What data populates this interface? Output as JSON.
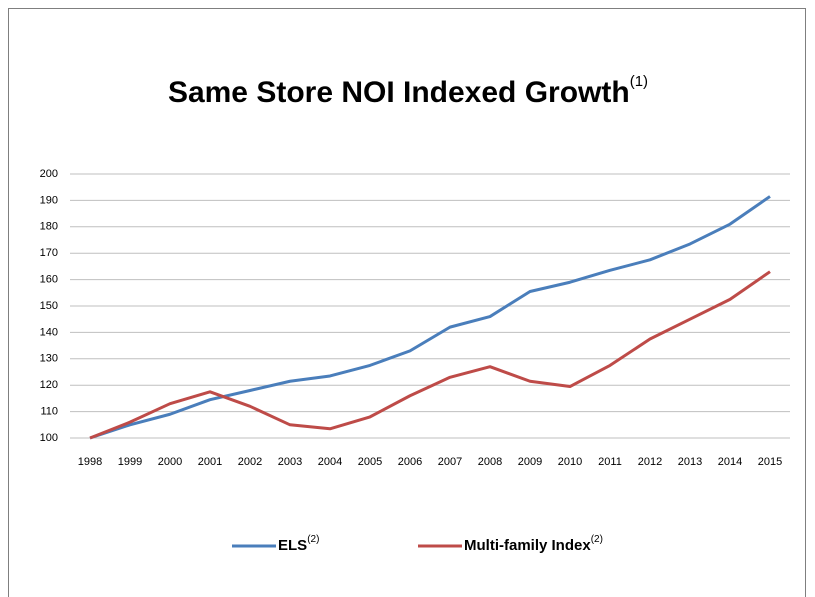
{
  "chart_data": {
    "type": "line",
    "title": "Same Store NOI Indexed Growth",
    "title_superscript": "(1)",
    "categories": [
      "1998",
      "1999",
      "2000",
      "2001",
      "2002",
      "2003",
      "2004",
      "2005",
      "2006",
      "2007",
      "2008",
      "2009",
      "2010",
      "2011",
      "2012",
      "2013",
      "2014",
      "2015"
    ],
    "series": [
      {
        "name": "ELS",
        "superscript": "(2)",
        "color": "#4a7ebb",
        "values": [
          100,
          105,
          109,
          114.5,
          118,
          121.5,
          123.5,
          127.5,
          133,
          142,
          146,
          155.5,
          159,
          163.5,
          167.5,
          173.5,
          181,
          191.5
        ]
      },
      {
        "name": "Multi-family Index",
        "superscript": "(2)",
        "color": "#be4b48",
        "values": [
          100,
          106,
          113,
          117.5,
          112,
          105,
          103.5,
          108,
          116,
          123,
          127,
          121.5,
          119.5,
          127.5,
          137.5,
          145,
          152.5,
          163
        ]
      }
    ],
    "ylim": [
      100,
      200
    ],
    "yticks": [
      100,
      110,
      120,
      130,
      140,
      150,
      160,
      170,
      180,
      190,
      200
    ],
    "grid": true
  }
}
